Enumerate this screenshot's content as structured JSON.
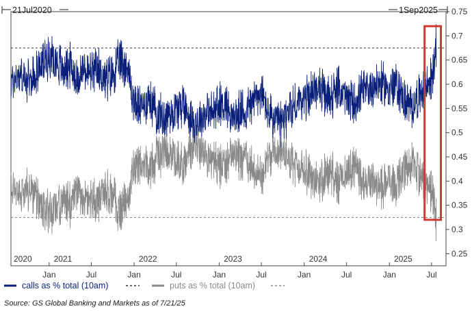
{
  "chart_data": {
    "type": "line",
    "range_start_label": "21Jul2020",
    "range_end_label": "1Sep2025",
    "x_start": "2020-07-21",
    "x_end": "2025-09-01",
    "ylim": [
      0.225,
      0.75
    ],
    "y_ticks": [
      "0.75",
      "0.7",
      "0.65",
      "0.6",
      "0.55",
      "0.5",
      "0.45",
      "0.4",
      "0.35",
      "0.3",
      "0.25"
    ],
    "y_tick_values": [
      0.75,
      0.7,
      0.65,
      0.6,
      0.55,
      0.5,
      0.45,
      0.4,
      0.35,
      0.3,
      0.25
    ],
    "x_tick_labels": [
      {
        "label": "Jan",
        "date": "2021-01-01"
      },
      {
        "label": "Jul",
        "date": "2021-07-01"
      },
      {
        "label": "Jan",
        "date": "2022-01-01"
      },
      {
        "label": "Jul",
        "date": "2022-07-01"
      },
      {
        "label": "Jan",
        "date": "2023-01-01"
      },
      {
        "label": "Jul",
        "date": "2023-07-01"
      },
      {
        "label": "Jan",
        "date": "2024-01-01"
      },
      {
        "label": "Jul",
        "date": "2024-07-01"
      },
      {
        "label": "Jan",
        "date": "2025-01-01"
      },
      {
        "label": "Jul",
        "date": "2025-07-01"
      }
    ],
    "year_labels": [
      {
        "label": "2020",
        "date": "2020-07-21"
      },
      {
        "label": "2021",
        "date": "2021-03-01"
      },
      {
        "label": "2022",
        "date": "2022-03-01"
      },
      {
        "label": "2023",
        "date": "2023-03-01"
      },
      {
        "label": "2024",
        "date": "2024-03-01"
      },
      {
        "label": "2025",
        "date": "2025-03-01"
      }
    ],
    "grid": false,
    "legend_position": "bottom",
    "reference_lines": [
      {
        "series": "calls as % total (10am)",
        "value": 0.675,
        "style": "dashed"
      },
      {
        "series": "puts as % total (10am)",
        "value": 0.325,
        "style": "dashed"
      }
    ],
    "highlight_box": {
      "from": "2025-06-01",
      "to": "2025-08-10",
      "ymin": 0.32,
      "ymax": 0.72,
      "color": "#d03a2e"
    },
    "series": [
      {
        "name": "calls as % total (10am)",
        "color": "#0a1f7a",
        "points": [
          [
            "2020-07-21",
            0.6
          ],
          [
            "2020-08-01",
            0.61
          ],
          [
            "2020-09-01",
            0.62
          ],
          [
            "2020-10-01",
            0.6
          ],
          [
            "2020-11-01",
            0.62
          ],
          [
            "2020-12-01",
            0.64
          ],
          [
            "2021-01-01",
            0.66
          ],
          [
            "2021-02-01",
            0.65
          ],
          [
            "2021-03-01",
            0.63
          ],
          [
            "2021-04-01",
            0.64
          ],
          [
            "2021-05-01",
            0.61
          ],
          [
            "2021-06-01",
            0.63
          ],
          [
            "2021-07-01",
            0.62
          ],
          [
            "2021-08-01",
            0.63
          ],
          [
            "2021-09-01",
            0.61
          ],
          [
            "2021-10-01",
            0.62
          ],
          [
            "2021-11-01",
            0.65
          ],
          [
            "2021-12-01",
            0.64
          ],
          [
            "2022-01-01",
            0.56
          ],
          [
            "2022-02-01",
            0.55
          ],
          [
            "2022-03-01",
            0.57
          ],
          [
            "2022-04-01",
            0.55
          ],
          [
            "2022-05-01",
            0.53
          ],
          [
            "2022-06-01",
            0.54
          ],
          [
            "2022-07-01",
            0.55
          ],
          [
            "2022-08-01",
            0.56
          ],
          [
            "2022-09-01",
            0.53
          ],
          [
            "2022-10-01",
            0.52
          ],
          [
            "2022-11-01",
            0.54
          ],
          [
            "2022-12-01",
            0.54
          ],
          [
            "2023-01-01",
            0.56
          ],
          [
            "2023-02-01",
            0.56
          ],
          [
            "2023-03-01",
            0.53
          ],
          [
            "2023-04-01",
            0.54
          ],
          [
            "2023-05-01",
            0.55
          ],
          [
            "2023-06-01",
            0.57
          ],
          [
            "2023-07-01",
            0.58
          ],
          [
            "2023-08-01",
            0.54
          ],
          [
            "2023-09-01",
            0.52
          ],
          [
            "2023-10-01",
            0.52
          ],
          [
            "2023-11-01",
            0.55
          ],
          [
            "2023-12-01",
            0.56
          ],
          [
            "2024-01-01",
            0.57
          ],
          [
            "2024-02-01",
            0.58
          ],
          [
            "2024-03-01",
            0.6
          ],
          [
            "2024-04-01",
            0.57
          ],
          [
            "2024-05-01",
            0.58
          ],
          [
            "2024-06-01",
            0.59
          ],
          [
            "2024-07-01",
            0.57
          ],
          [
            "2024-08-01",
            0.56
          ],
          [
            "2024-09-01",
            0.58
          ],
          [
            "2024-10-01",
            0.59
          ],
          [
            "2024-11-01",
            0.6
          ],
          [
            "2024-12-01",
            0.6
          ],
          [
            "2025-01-01",
            0.59
          ],
          [
            "2025-02-01",
            0.6
          ],
          [
            "2025-03-01",
            0.57
          ],
          [
            "2025-04-01",
            0.55
          ],
          [
            "2025-05-01",
            0.57
          ],
          [
            "2025-06-01",
            0.59
          ],
          [
            "2025-07-01",
            0.61
          ],
          [
            "2025-07-21",
            0.675
          ]
        ]
      },
      {
        "name": "puts as % total (10am)",
        "color": "#8a8a8a",
        "points": [
          [
            "2020-07-21",
            0.39
          ],
          [
            "2020-08-01",
            0.38
          ],
          [
            "2020-09-01",
            0.37
          ],
          [
            "2020-10-01",
            0.39
          ],
          [
            "2020-11-01",
            0.37
          ],
          [
            "2020-12-01",
            0.35
          ],
          [
            "2021-01-01",
            0.33
          ],
          [
            "2021-02-01",
            0.34
          ],
          [
            "2021-03-01",
            0.36
          ],
          [
            "2021-04-01",
            0.35
          ],
          [
            "2021-05-01",
            0.38
          ],
          [
            "2021-06-01",
            0.36
          ],
          [
            "2021-07-01",
            0.37
          ],
          [
            "2021-08-01",
            0.36
          ],
          [
            "2021-09-01",
            0.38
          ],
          [
            "2021-10-01",
            0.37
          ],
          [
            "2021-11-01",
            0.34
          ],
          [
            "2021-12-01",
            0.35
          ],
          [
            "2022-01-01",
            0.43
          ],
          [
            "2022-02-01",
            0.44
          ],
          [
            "2022-03-01",
            0.42
          ],
          [
            "2022-04-01",
            0.44
          ],
          [
            "2022-05-01",
            0.46
          ],
          [
            "2022-06-01",
            0.45
          ],
          [
            "2022-07-01",
            0.44
          ],
          [
            "2022-08-01",
            0.43
          ],
          [
            "2022-09-01",
            0.46
          ],
          [
            "2022-10-01",
            0.47
          ],
          [
            "2022-11-01",
            0.45
          ],
          [
            "2022-12-01",
            0.45
          ],
          [
            "2023-01-01",
            0.43
          ],
          [
            "2023-02-01",
            0.43
          ],
          [
            "2023-03-01",
            0.46
          ],
          [
            "2023-04-01",
            0.45
          ],
          [
            "2023-05-01",
            0.44
          ],
          [
            "2023-06-01",
            0.42
          ],
          [
            "2023-07-01",
            0.41
          ],
          [
            "2023-08-01",
            0.45
          ],
          [
            "2023-09-01",
            0.47
          ],
          [
            "2023-10-01",
            0.47
          ],
          [
            "2023-11-01",
            0.44
          ],
          [
            "2023-12-01",
            0.43
          ],
          [
            "2024-01-01",
            0.42
          ],
          [
            "2024-02-01",
            0.41
          ],
          [
            "2024-03-01",
            0.39
          ],
          [
            "2024-04-01",
            0.42
          ],
          [
            "2024-05-01",
            0.41
          ],
          [
            "2024-06-01",
            0.4
          ],
          [
            "2024-07-01",
            0.42
          ],
          [
            "2024-08-01",
            0.43
          ],
          [
            "2024-09-01",
            0.41
          ],
          [
            "2024-10-01",
            0.4
          ],
          [
            "2024-11-01",
            0.39
          ],
          [
            "2024-12-01",
            0.39
          ],
          [
            "2025-01-01",
            0.4
          ],
          [
            "2025-02-01",
            0.39
          ],
          [
            "2025-03-01",
            0.42
          ],
          [
            "2025-04-01",
            0.44
          ],
          [
            "2025-05-01",
            0.42
          ],
          [
            "2025-06-01",
            0.4
          ],
          [
            "2025-07-01",
            0.38
          ],
          [
            "2025-07-21",
            0.325
          ]
        ]
      }
    ]
  },
  "legend": {
    "calls_label": "calls as % total (10am)",
    "puts_label": "puts as % total (10am)"
  },
  "source_note": "Source: GS Global Banking and Markets as of 7/21/25"
}
